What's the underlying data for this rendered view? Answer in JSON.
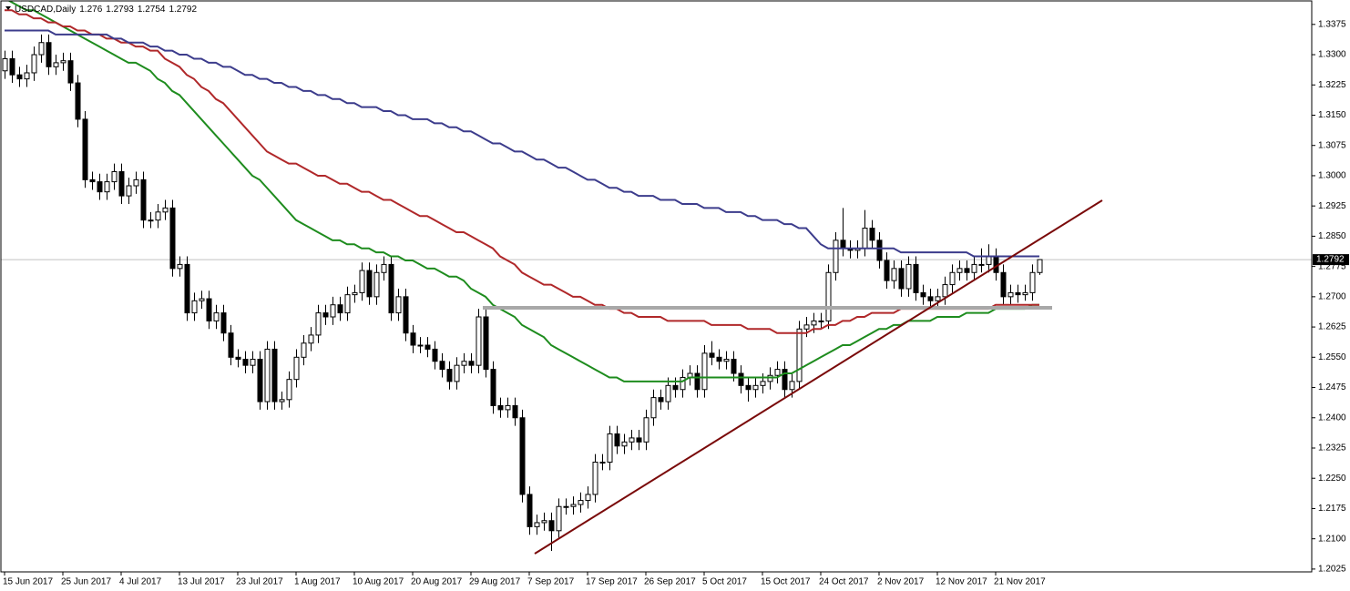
{
  "chart_data": {
    "type": "candlestick",
    "title": "USDCAD,Daily",
    "categories": [
      "15 Jun 2017",
      null,
      null,
      null,
      null,
      null,
      null,
      null,
      "25 Jun 2017",
      null,
      null,
      null,
      null,
      null,
      null,
      null,
      "4 Jul 2017",
      null,
      null,
      null,
      null,
      null,
      null,
      null,
      "13 Jul 2017",
      null,
      null,
      null,
      null,
      null,
      null,
      null,
      "23 Jul 2017",
      null,
      null,
      null,
      null,
      null,
      null,
      null,
      "1 Aug 2017",
      null,
      null,
      null,
      null,
      null,
      null,
      null,
      "10 Aug 2017",
      null,
      null,
      null,
      null,
      null,
      null,
      null,
      "20 Aug 2017",
      null,
      null,
      null,
      null,
      null,
      null,
      null,
      "29 Aug 2017",
      null,
      null,
      null,
      null,
      null,
      null,
      null,
      "7 Sep 2017",
      null,
      null,
      null,
      null,
      null,
      null,
      null,
      "17 Sep 2017",
      null,
      null,
      null,
      null,
      null,
      null,
      null,
      "26 Sep 2017",
      null,
      null,
      null,
      null,
      null,
      null,
      null,
      "5 Oct 2017",
      null,
      null,
      null,
      null,
      null,
      null,
      null,
      "15 Oct 2017",
      null,
      null,
      null,
      null,
      null,
      null,
      null,
      "24 Oct 2017",
      null,
      null,
      null,
      null,
      null,
      null,
      null,
      "2 Nov 2017",
      null,
      null,
      null,
      null,
      null,
      null,
      null,
      "12 Nov 2017",
      null,
      null,
      null,
      null,
      null,
      null,
      null,
      "21 Nov 2017",
      null,
      null,
      null,
      null,
      null,
      null
    ],
    "open": [
      1.326,
      1.329,
      1.325,
      1.324,
      1.3255,
      1.33,
      1.333,
      1.327,
      1.328,
      1.3285,
      1.323,
      1.314,
      1.299,
      1.2985,
      1.296,
      1.2985,
      1.301,
      1.295,
      1.2975,
      1.299,
      1.289,
      1.289,
      1.291,
      1.292,
      1.277,
      1.278,
      1.266,
      1.269,
      1.2695,
      1.264,
      1.266,
      1.261,
      1.255,
      1.2545,
      1.253,
      1.2545,
      1.244,
      1.257,
      1.244,
      1.2445,
      1.2495,
      1.255,
      1.2585,
      1.2605,
      1.266,
      1.265,
      1.268,
      1.266,
      1.2705,
      1.271,
      1.2765,
      1.27,
      1.276,
      1.278,
      1.266,
      1.27,
      1.261,
      1.258,
      1.258,
      1.257,
      1.254,
      1.252,
      1.249,
      1.253,
      1.254,
      1.253,
      1.265,
      1.252,
      1.243,
      1.242,
      1.243,
      1.24,
      1.221,
      1.213,
      1.214,
      1.2145,
      1.212,
      1.218,
      1.218,
      1.2185,
      1.2195,
      1.221,
      1.229,
      1.229,
      1.236,
      1.233,
      1.234,
      1.235,
      1.234,
      1.24,
      1.245,
      1.244,
      1.248,
      1.247,
      1.25,
      1.251,
      1.247,
      1.256,
      1.255,
      1.254,
      1.2545,
      1.251,
      1.248,
      1.247,
      1.248,
      1.249,
      1.2505,
      1.252,
      1.247,
      1.249,
      1.262,
      1.263,
      1.264,
      1.264,
      1.276,
      1.284,
      1.282,
      1.2815,
      1.282,
      1.287,
      1.284,
      1.279,
      1.274,
      1.277,
      1.272,
      1.278,
      1.271,
      1.27,
      1.269,
      1.27,
      1.273,
      1.276,
      1.277,
      1.276,
      1.278,
      1.278,
      1.28,
      1.276,
      1.27,
      1.271,
      1.2705,
      1.271,
      1.276
    ],
    "high": [
      1.331,
      1.331,
      1.327,
      1.3275,
      1.332,
      1.335,
      1.335,
      1.33,
      1.3305,
      1.3305,
      1.325,
      1.316,
      1.301,
      1.3005,
      1.3005,
      1.303,
      1.303,
      1.2995,
      1.301,
      1.301,
      1.291,
      1.293,
      1.294,
      1.294,
      1.28,
      1.28,
      1.271,
      1.2715,
      1.2715,
      1.268,
      1.268,
      1.263,
      1.257,
      1.2565,
      1.2565,
      1.2565,
      1.259,
      1.259,
      1.2465,
      1.2515,
      1.257,
      1.2605,
      1.2625,
      1.268,
      1.268,
      1.27,
      1.27,
      1.2725,
      1.273,
      1.2785,
      1.2785,
      1.278,
      1.28,
      1.28,
      1.272,
      1.272,
      1.263,
      1.26,
      1.26,
      1.259,
      1.256,
      1.254,
      1.255,
      1.256,
      1.256,
      1.267,
      1.267,
      1.254,
      1.245,
      1.245,
      1.245,
      1.242,
      1.223,
      1.216,
      1.2165,
      1.2165,
      1.22,
      1.22,
      1.2205,
      1.2215,
      1.223,
      1.231,
      1.231,
      1.238,
      1.238,
      1.236,
      1.237,
      1.237,
      1.242,
      1.247,
      1.247,
      1.25,
      1.25,
      1.252,
      1.253,
      1.253,
      1.258,
      1.259,
      1.257,
      1.2565,
      1.2565,
      1.253,
      1.25,
      1.25,
      1.251,
      1.2525,
      1.254,
      1.254,
      1.251,
      1.264,
      1.265,
      1.266,
      1.266,
      1.278,
      1.286,
      1.292,
      1.284,
      1.284,
      1.2915,
      1.289,
      1.286,
      1.281,
      1.279,
      1.279,
      1.28,
      1.28,
      1.273,
      1.272,
      1.272,
      1.275,
      1.278,
      1.279,
      1.279,
      1.28,
      1.282,
      1.283,
      1.282,
      1.278,
      1.273,
      1.273,
      1.273,
      1.278,
      1.2793
    ],
    "low": [
      1.324,
      1.323,
      1.322,
      1.322,
      1.3235,
      1.328,
      1.325,
      1.325,
      1.326,
      1.321,
      1.312,
      1.297,
      1.2965,
      1.294,
      1.294,
      1.2965,
      1.293,
      1.293,
      1.2955,
      1.287,
      1.287,
      1.287,
      1.289,
      1.275,
      1.275,
      1.264,
      1.264,
      1.267,
      1.262,
      1.262,
      1.259,
      1.253,
      1.2525,
      1.251,
      1.251,
      1.242,
      1.242,
      1.242,
      1.242,
      1.2425,
      1.2475,
      1.253,
      1.2565,
      1.2585,
      1.263,
      1.263,
      1.264,
      1.264,
      1.2685,
      1.269,
      1.268,
      1.268,
      1.274,
      1.264,
      1.264,
      1.259,
      1.256,
      1.256,
      1.255,
      1.252,
      1.25,
      1.247,
      1.247,
      1.251,
      1.251,
      1.251,
      1.25,
      1.241,
      1.24,
      1.24,
      1.238,
      1.219,
      1.211,
      1.211,
      1.212,
      1.207,
      1.21,
      1.216,
      1.216,
      1.2165,
      1.2175,
      1.219,
      1.227,
      1.227,
      1.231,
      1.231,
      1.232,
      1.232,
      1.232,
      1.238,
      1.242,
      1.242,
      1.245,
      1.245,
      1.248,
      1.245,
      1.245,
      1.253,
      1.252,
      1.252,
      1.249,
      1.246,
      1.244,
      1.245,
      1.246,
      1.247,
      1.2485,
      1.245,
      1.245,
      1.247,
      1.26,
      1.261,
      1.262,
      1.262,
      1.274,
      1.28,
      1.2795,
      1.2795,
      1.28,
      1.282,
      1.277,
      1.272,
      1.272,
      1.27,
      1.27,
      1.269,
      1.268,
      1.267,
      1.267,
      1.268,
      1.271,
      1.274,
      1.274,
      1.274,
      1.276,
      1.276,
      1.274,
      1.268,
      1.268,
      1.2685,
      1.269,
      1.269,
      1.2754
    ],
    "close": [
      1.329,
      1.325,
      1.324,
      1.3255,
      1.33,
      1.333,
      1.327,
      1.328,
      1.3285,
      1.323,
      1.314,
      1.299,
      1.2985,
      1.296,
      1.2985,
      1.301,
      1.295,
      1.2975,
      1.299,
      1.289,
      1.289,
      1.291,
      1.292,
      1.277,
      1.278,
      1.266,
      1.269,
      1.2695,
      1.264,
      1.266,
      1.261,
      1.255,
      1.2545,
      1.253,
      1.2545,
      1.244,
      1.257,
      1.244,
      1.2445,
      1.2495,
      1.255,
      1.2585,
      1.2605,
      1.266,
      1.265,
      1.268,
      1.266,
      1.2705,
      1.271,
      1.2765,
      1.27,
      1.276,
      1.278,
      1.266,
      1.27,
      1.261,
      1.258,
      1.258,
      1.257,
      1.254,
      1.252,
      1.249,
      1.253,
      1.254,
      1.253,
      1.265,
      1.252,
      1.243,
      1.242,
      1.243,
      1.24,
      1.221,
      1.213,
      1.214,
      1.2145,
      1.212,
      1.218,
      1.218,
      1.2185,
      1.2195,
      1.221,
      1.229,
      1.229,
      1.236,
      1.233,
      1.234,
      1.235,
      1.234,
      1.24,
      1.245,
      1.244,
      1.248,
      1.247,
      1.25,
      1.251,
      1.247,
      1.256,
      1.255,
      1.254,
      1.2545,
      1.251,
      1.248,
      1.247,
      1.248,
      1.249,
      1.2505,
      1.252,
      1.247,
      1.249,
      1.262,
      1.263,
      1.264,
      1.264,
      1.276,
      1.284,
      1.282,
      1.2815,
      1.282,
      1.287,
      1.284,
      1.279,
      1.274,
      1.277,
      1.272,
      1.278,
      1.271,
      1.27,
      1.269,
      1.27,
      1.273,
      1.276,
      1.277,
      1.276,
      1.278,
      1.278,
      1.28,
      1.276,
      1.27,
      1.271,
      1.2705,
      1.271,
      1.276,
      1.2792
    ],
    "up_color": "#ffffff",
    "down_color": "#000000",
    "series": [
      {
        "color": "#1e8c1e",
        "values": [
          1.344,
          1.343,
          1.342,
          1.341,
          1.341,
          1.34,
          1.339,
          1.338,
          1.337,
          1.336,
          1.335,
          1.334,
          1.333,
          1.332,
          1.331,
          1.33,
          1.329,
          1.328,
          1.328,
          1.327,
          1.326,
          1.324,
          1.323,
          1.321,
          1.32,
          1.318,
          1.316,
          1.314,
          1.312,
          1.31,
          1.308,
          1.306,
          1.304,
          1.302,
          1.3,
          1.299,
          1.297,
          1.295,
          1.293,
          1.291,
          1.289,
          1.288,
          1.287,
          1.286,
          1.285,
          1.284,
          1.284,
          1.283,
          1.283,
          1.282,
          1.282,
          1.281,
          1.281,
          1.28,
          1.28,
          1.279,
          1.279,
          1.278,
          1.277,
          1.277,
          1.276,
          1.275,
          1.275,
          1.274,
          1.272,
          1.271,
          1.27,
          1.268,
          1.267,
          1.266,
          1.265,
          1.263,
          1.262,
          1.261,
          1.26,
          1.258,
          1.257,
          1.256,
          1.255,
          1.254,
          1.253,
          1.252,
          1.251,
          1.25,
          1.25,
          1.249,
          1.249,
          1.249,
          1.249,
          1.249,
          1.249,
          1.249,
          1.249,
          1.249,
          1.25,
          1.25,
          1.25,
          1.25,
          1.25,
          1.25,
          1.25,
          1.25,
          1.25,
          1.25,
          1.25,
          1.25,
          1.25,
          1.251,
          1.251,
          1.252,
          1.253,
          1.254,
          1.255,
          1.256,
          1.257,
          1.258,
          1.258,
          1.259,
          1.26,
          1.261,
          1.262,
          1.262,
          1.263,
          1.263,
          1.264,
          1.264,
          1.264,
          1.264,
          1.265,
          1.265,
          1.265,
          1.265,
          1.266,
          1.266,
          1.266,
          1.266,
          1.267,
          1.267,
          1.267,
          1.267,
          1.267,
          1.268,
          1.268
        ]
      },
      {
        "color": "#b0282a",
        "values": [
          1.341,
          1.341,
          1.34,
          1.34,
          1.339,
          1.339,
          1.338,
          1.338,
          1.337,
          1.337,
          1.336,
          1.336,
          1.335,
          1.335,
          1.334,
          1.334,
          1.333,
          1.333,
          1.332,
          1.332,
          1.331,
          1.331,
          1.329,
          1.328,
          1.327,
          1.325,
          1.324,
          1.322,
          1.321,
          1.319,
          1.318,
          1.316,
          1.314,
          1.312,
          1.31,
          1.308,
          1.306,
          1.305,
          1.304,
          1.303,
          1.303,
          1.302,
          1.301,
          1.3,
          1.3,
          1.299,
          1.298,
          1.298,
          1.297,
          1.296,
          1.296,
          1.295,
          1.294,
          1.294,
          1.293,
          1.292,
          1.291,
          1.29,
          1.29,
          1.289,
          1.288,
          1.287,
          1.286,
          1.286,
          1.285,
          1.284,
          1.283,
          1.282,
          1.28,
          1.279,
          1.278,
          1.276,
          1.275,
          1.274,
          1.273,
          1.273,
          1.272,
          1.271,
          1.27,
          1.27,
          1.269,
          1.268,
          1.268,
          1.267,
          1.267,
          1.266,
          1.266,
          1.265,
          1.265,
          1.265,
          1.265,
          1.264,
          1.264,
          1.264,
          1.264,
          1.264,
          1.264,
          1.263,
          1.263,
          1.263,
          1.263,
          1.263,
          1.262,
          1.262,
          1.262,
          1.262,
          1.261,
          1.261,
          1.261,
          1.261,
          1.261,
          1.262,
          1.262,
          1.263,
          1.263,
          1.264,
          1.264,
          1.265,
          1.265,
          1.266,
          1.266,
          1.266,
          1.266,
          1.267,
          1.267,
          1.267,
          1.267,
          1.267,
          1.267,
          1.267,
          1.267,
          1.267,
          1.267,
          1.267,
          1.267,
          1.267,
          1.268,
          1.268,
          1.268,
          1.268,
          1.268,
          1.268,
          1.268
        ]
      },
      {
        "color": "#3c3c8c",
        "values": [
          1.336,
          1.336,
          1.336,
          1.336,
          1.336,
          1.336,
          1.336,
          1.335,
          1.335,
          1.335,
          1.335,
          1.335,
          1.335,
          1.335,
          1.335,
          1.334,
          1.334,
          1.333,
          1.333,
          1.333,
          1.332,
          1.332,
          1.331,
          1.331,
          1.33,
          1.33,
          1.329,
          1.329,
          1.328,
          1.328,
          1.327,
          1.327,
          1.326,
          1.325,
          1.325,
          1.324,
          1.324,
          1.323,
          1.323,
          1.322,
          1.322,
          1.321,
          1.321,
          1.32,
          1.32,
          1.319,
          1.319,
          1.318,
          1.318,
          1.317,
          1.317,
          1.317,
          1.316,
          1.316,
          1.315,
          1.315,
          1.314,
          1.314,
          1.314,
          1.313,
          1.313,
          1.312,
          1.312,
          1.311,
          1.311,
          1.31,
          1.309,
          1.308,
          1.308,
          1.307,
          1.306,
          1.306,
          1.305,
          1.304,
          1.304,
          1.303,
          1.302,
          1.302,
          1.301,
          1.3,
          1.299,
          1.299,
          1.298,
          1.297,
          1.297,
          1.296,
          1.296,
          1.295,
          1.295,
          1.295,
          1.294,
          1.294,
          1.294,
          1.293,
          1.293,
          1.293,
          1.292,
          1.292,
          1.292,
          1.291,
          1.291,
          1.291,
          1.29,
          1.29,
          1.289,
          1.289,
          1.289,
          1.288,
          1.288,
          1.287,
          1.287,
          1.285,
          1.283,
          1.282,
          1.282,
          1.282,
          1.282,
          1.282,
          1.282,
          1.282,
          1.282,
          1.282,
          1.282,
          1.281,
          1.281,
          1.281,
          1.281,
          1.281,
          1.281,
          1.281,
          1.281,
          1.281,
          1.281,
          1.28,
          1.28,
          1.28,
          1.28,
          1.28,
          1.28,
          1.28,
          1.28,
          1.28,
          1.28
        ]
      }
    ],
    "ylim": [
      1.2018,
      1.3431
    ],
    "yticks": [
      1.3375,
      {
        "value": 1.33,
        "label": "1.3300"
      },
      1.3225,
      {
        "value": 1.315,
        "label": "1.3150"
      },
      1.3075,
      {
        "value": 1.3,
        "label": "1.3000"
      },
      1.2925,
      {
        "value": 1.285,
        "label": "1.2850"
      },
      1.2775,
      {
        "value": 1.27,
        "label": "1.2700"
      },
      1.2625,
      {
        "value": 1.255,
        "label": "1.2550"
      },
      1.2475,
      {
        "value": 1.24,
        "label": "1.2400"
      },
      1.2325,
      {
        "value": 1.225,
        "label": "1.2250"
      },
      1.2175,
      {
        "value": 1.21,
        "label": "1.2100"
      },
      1.2025
    ]
  }
}
